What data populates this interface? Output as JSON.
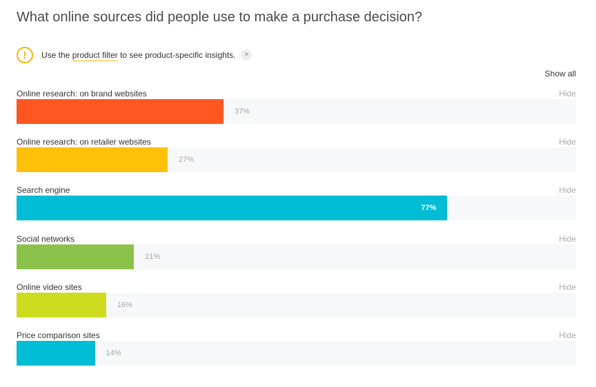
{
  "header": {
    "title": "What online sources did people use to make a purchase decision?"
  },
  "notice": {
    "prefix": "Use the ",
    "link_label": "product filter",
    "suffix": " to see product-specific insights.",
    "close_symbol": "×",
    "icon_symbol": "!"
  },
  "controls": {
    "show_all_label": "Show all",
    "hide_label": "Hide"
  },
  "colors": {
    "accent": "#f5b400"
  },
  "chart_data": {
    "type": "bar",
    "orientation": "horizontal",
    "value_unit": "%",
    "xlim": [
      0,
      100
    ],
    "grid": false,
    "categories": [
      "Online research: on brand websites",
      "Online research: on retailer websites",
      "Search engine",
      "Social networks",
      "Online video sites",
      "Price comparison sites"
    ],
    "values": [
      37,
      27,
      77,
      21,
      16,
      14
    ],
    "value_labels": [
      "37%",
      "27%",
      "77%",
      "21%",
      "16%",
      "14%"
    ],
    "colors": [
      "#ff5722",
      "#ffc107",
      "#00bcd4",
      "#8bc34a",
      "#cddc1e",
      "#00bcd4"
    ]
  }
}
